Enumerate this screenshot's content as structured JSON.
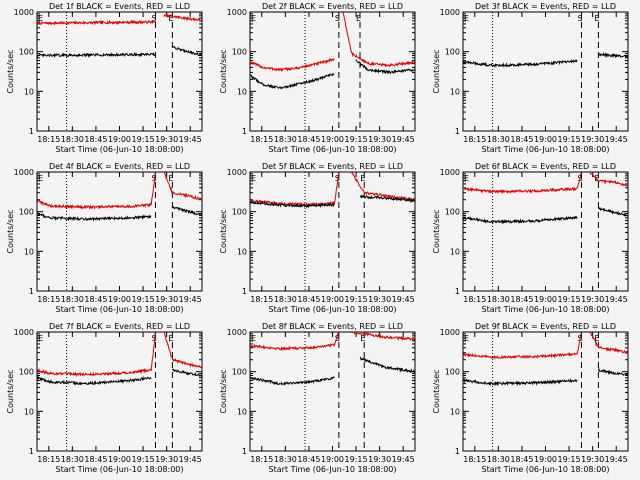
{
  "figure": {
    "background": "#f4f4f4",
    "event_color": "#000000",
    "lld_color": "#dd0000"
  },
  "chart_data": [
    {
      "type": "line",
      "title": "Det 1f BLACK = Events, RED = LLD",
      "xlabel": "Start Time (06-Jun-10 18:08:00)",
      "ylabel": "Counts/sec",
      "yscale": "log",
      "ylim": [
        1,
        1000
      ],
      "ytick_labels": [
        "1",
        "10",
        "100",
        "1000"
      ],
      "xlim": [
        "18:08",
        "18:47"
      ],
      "xtick_labels": [
        "18:15",
        "18:30",
        "18:45",
        "19:00",
        "19:15",
        "19:30",
        "19:45"
      ],
      "xtick_note": "tick labels as printed; the axis spans roughly 18:08-18:47",
      "dotted_vlines": [
        "18:15"
      ],
      "markers": [
        {
          "label": "S",
          "x": "18:36"
        },
        {
          "label": "E",
          "x": "18:40"
        }
      ],
      "corner_label": "E",
      "series": [
        {
          "name": "LLD",
          "segments": [
            {
              "x": [
                "18:08",
                "18:36"
              ],
              "y": [
                520,
                560
              ]
            },
            {
              "x": [
                "18:38",
                "18:47"
              ],
              "y": [
                820,
                620
              ]
            }
          ]
        },
        {
          "name": "Events",
          "segments": [
            {
              "x": [
                "18:08",
                "18:36"
              ],
              "y": [
                80,
                85
              ]
            },
            {
              "x": [
                "18:40",
                "18:47"
              ],
              "y": [
                130,
                80
              ]
            }
          ]
        }
      ]
    },
    {
      "type": "line",
      "title": "Det 2f BLACK = Events, RED = LLD",
      "xlabel": "Start Time (06-Jun-10 18:08:00)",
      "ylabel": "Counts/sec",
      "yscale": "log",
      "ylim": [
        1,
        1000
      ],
      "ytick_labels": [
        "1",
        "10",
        "100",
        "1000"
      ],
      "xlim": [
        "18:08",
        "18:47"
      ],
      "xtick_labels": [
        "18:15",
        "18:30",
        "18:45",
        "19:00",
        "19:15",
        "19:30",
        "19:45"
      ],
      "xtick_note": "tick labels as printed; the axis spans roughly 18:08-18:47",
      "dotted_vlines": [
        "18:21"
      ],
      "markers": [
        {
          "label": "S",
          "x": "18:29"
        },
        {
          "label": "E",
          "x": "18:34"
        }
      ],
      "corner_label": "E",
      "series": [
        {
          "name": "LLD",
          "segments": [
            {
              "x": [
                "18:08",
                "18:11",
                "18:15",
                "18:19",
                "18:24",
                "18:28"
              ],
              "y": [
                55,
                40,
                35,
                38,
                50,
                65
              ]
            },
            {
              "x": [
                "18:30",
                "18:32",
                "18:36",
                "18:41",
                "18:47"
              ],
              "y": [
                1000,
                90,
                50,
                45,
                55
              ]
            }
          ]
        },
        {
          "name": "Events",
          "segments": [
            {
              "x": [
                "18:08",
                "18:11",
                "18:15",
                "18:19",
                "18:24",
                "18:28"
              ],
              "y": [
                25,
                15,
                12,
                15,
                20,
                28
              ]
            },
            {
              "x": [
                "18:33",
                "18:36",
                "18:41",
                "18:47"
              ],
              "y": [
                60,
                35,
                30,
                35
              ]
            }
          ]
        }
      ]
    },
    {
      "type": "line",
      "title": "Det 3f BLACK = Events, RED = LLD",
      "xlabel": "Start Time (06-Jun-10 18:08:00)",
      "ylabel": "Counts/sec",
      "yscale": "log",
      "ylim": [
        1,
        1000
      ],
      "ytick_labels": [
        "1",
        "10",
        "100",
        "1000"
      ],
      "xlim": [
        "18:08",
        "18:47"
      ],
      "xtick_labels": [
        "18:15",
        "18:30",
        "18:45",
        "19:00",
        "19:15",
        "19:30",
        "19:45"
      ],
      "xtick_note": "tick labels as printed; the axis spans roughly 18:08-18:47",
      "dotted_vlines": [
        "18:15"
      ],
      "markers": [
        {
          "label": "S",
          "x": "18:36"
        },
        {
          "label": "E",
          "x": "18:40"
        }
      ],
      "corner_label": "E",
      "series": [
        {
          "name": "LLD",
          "segments": []
        },
        {
          "name": "Events",
          "segments": [
            {
              "x": [
                "18:08",
                "18:15",
                "18:25",
                "18:35"
              ],
              "y": [
                55,
                45,
                48,
                58
              ]
            },
            {
              "x": [
                "18:40",
                "18:47"
              ],
              "y": [
                85,
                75
              ]
            }
          ]
        }
      ]
    },
    {
      "type": "line",
      "title": "Det 4f BLACK = Events, RED = LLD",
      "xlabel": "Start Time (06-Jun-10 18:08:00)",
      "ylabel": "Counts/sec",
      "yscale": "log",
      "ylim": [
        1,
        1000
      ],
      "ytick_labels": [
        "1",
        "10",
        "100",
        "1000"
      ],
      "xlim": [
        "18:08",
        "18:47"
      ],
      "xtick_labels": [
        "18:15",
        "18:30",
        "18:45",
        "19:00",
        "19:15",
        "19:30",
        "19:45"
      ],
      "xtick_note": "tick labels as printed; the axis spans roughly 18:08-18:47",
      "dotted_vlines": [
        "18:15"
      ],
      "markers": [
        {
          "label": "S",
          "x": "18:36"
        },
        {
          "label": "E",
          "x": "18:40"
        }
      ],
      "corner_label": "E",
      "series": [
        {
          "name": "LLD",
          "segments": [
            {
              "x": [
                "18:08",
                "18:11",
                "18:20",
                "18:30",
                "18:35",
                "18:36"
              ],
              "y": [
                190,
                140,
                130,
                135,
                150,
                1000
              ]
            },
            {
              "x": [
                "18:38",
                "18:40",
                "18:44",
                "18:47"
              ],
              "y": [
                1000,
                300,
                250,
                200
              ]
            }
          ]
        },
        {
          "name": "Events",
          "segments": [
            {
              "x": [
                "18:08",
                "18:11",
                "18:20",
                "18:30",
                "18:35"
              ],
              "y": [
                90,
                70,
                65,
                70,
                75
              ]
            },
            {
              "x": [
                "18:40",
                "18:44",
                "18:47"
              ],
              "y": [
                130,
                100,
                80
              ]
            }
          ]
        }
      ]
    },
    {
      "type": "line",
      "title": "Det 5f BLACK = Events, RED = LLD",
      "xlabel": "Start Time (06-Jun-10 18:08:00)",
      "ylabel": "Counts/sec",
      "yscale": "log",
      "ylim": [
        1,
        1000
      ],
      "ytick_labels": [
        "1",
        "10",
        "100",
        "1000"
      ],
      "xlim": [
        "18:08",
        "18:47"
      ],
      "xtick_labels": [
        "18:15",
        "18:30",
        "18:45",
        "19:00",
        "19:15",
        "19:30",
        "19:45"
      ],
      "xtick_note": "tick labels as printed; the axis spans roughly 18:08-18:47",
      "dotted_vlines": [
        "18:21"
      ],
      "markers": [
        {
          "label": "S",
          "x": "18:29"
        },
        {
          "label": "E",
          "x": "18:35"
        }
      ],
      "corner_label": "E",
      "series": [
        {
          "name": "LLD",
          "segments": [
            {
              "x": [
                "18:08",
                "18:15",
                "18:22",
                "18:28",
                "18:29"
              ],
              "y": [
                190,
                160,
                150,
                165,
                1000
              ]
            },
            {
              "x": [
                "18:32",
                "18:35",
                "18:40",
                "18:47"
              ],
              "y": [
                1000,
                300,
                250,
                200
              ]
            }
          ]
        },
        {
          "name": "Events",
          "segments": [
            {
              "x": [
                "18:08",
                "18:15",
                "18:22",
                "18:28"
              ],
              "y": [
                175,
                145,
                140,
                150
              ]
            },
            {
              "x": [
                "18:34",
                "18:40",
                "18:47"
              ],
              "y": [
                240,
                220,
                190
              ]
            }
          ]
        }
      ]
    },
    {
      "type": "line",
      "title": "Det 6f BLACK = Events, RED = LLD",
      "xlabel": "Start Time (06-Jun-10 18:08:00)",
      "ylabel": "Counts/sec",
      "yscale": "log",
      "ylim": [
        1,
        1000
      ],
      "ytick_labels": [
        "1",
        "10",
        "100",
        "1000"
      ],
      "xlim": [
        "18:08",
        "18:47"
      ],
      "xtick_labels": [
        "18:15",
        "18:30",
        "18:45",
        "19:00",
        "19:15",
        "19:30",
        "19:45"
      ],
      "xtick_note": "tick labels as printed; the axis spans roughly 18:08-18:47",
      "dotted_vlines": [
        "18:15"
      ],
      "markers": [
        {
          "label": "S",
          "x": "18:36"
        },
        {
          "label": "E",
          "x": "18:40"
        }
      ],
      "corner_label": "E",
      "series": [
        {
          "name": "LLD",
          "segments": [
            {
              "x": [
                "18:08",
                "18:15",
                "18:25",
                "18:35",
                "18:36"
              ],
              "y": [
                380,
                320,
                330,
                380,
                1000
              ]
            },
            {
              "x": [
                "18:38",
                "18:40",
                "18:44",
                "18:47"
              ],
              "y": [
                1000,
                600,
                550,
                450
              ]
            }
          ]
        },
        {
          "name": "Events",
          "segments": [
            {
              "x": [
                "18:08",
                "18:15",
                "18:25",
                "18:35"
              ],
              "y": [
                70,
                55,
                58,
                72
              ]
            },
            {
              "x": [
                "18:40",
                "18:44",
                "18:47"
              ],
              "y": [
                120,
                95,
                80
              ]
            }
          ]
        }
      ]
    },
    {
      "type": "line",
      "title": "Det 7f BLACK = Events, RED = LLD",
      "xlabel": "Start Time (06-Jun-10 18:08:00)",
      "ylabel": "Counts/sec",
      "yscale": "log",
      "ylim": [
        1,
        1000
      ],
      "ytick_labels": [
        "1",
        "10",
        "100",
        "1000"
      ],
      "xlim": [
        "18:08",
        "18:47"
      ],
      "xtick_labels": [
        "18:15",
        "18:30",
        "18:45",
        "19:00",
        "19:15",
        "19:30",
        "19:45"
      ],
      "xtick_note": "tick labels as printed; the axis spans roughly 18:08-18:47",
      "dotted_vlines": [
        "18:15"
      ],
      "markers": [
        {
          "label": "S",
          "x": "18:36"
        },
        {
          "label": "E",
          "x": "18:40"
        }
      ],
      "corner_label": "E",
      "series": [
        {
          "name": "LLD",
          "segments": [
            {
              "x": [
                "18:08",
                "18:11",
                "18:20",
                "18:30",
                "18:35",
                "18:36"
              ],
              "y": [
                110,
                90,
                85,
                95,
                110,
                1000
              ]
            },
            {
              "x": [
                "18:38",
                "18:40",
                "18:44",
                "18:47"
              ],
              "y": [
                1000,
                200,
                150,
                130
              ]
            }
          ]
        },
        {
          "name": "Events",
          "segments": [
            {
              "x": [
                "18:08",
                "18:11",
                "18:20",
                "18:30",
                "18:35"
              ],
              "y": [
                70,
                55,
                50,
                60,
                70
              ]
            },
            {
              "x": [
                "18:40",
                "18:44",
                "18:47"
              ],
              "y": [
                110,
                90,
                80
              ]
            }
          ]
        }
      ]
    },
    {
      "type": "line",
      "title": "Det 8f BLACK = Events, RED = LLD",
      "xlabel": "Start Time (06-Jun-10 18:08:00)",
      "ylabel": "Counts/sec",
      "yscale": "log",
      "ylim": [
        1,
        1000
      ],
      "ytick_labels": [
        "1",
        "10",
        "100",
        "1000"
      ],
      "xlim": [
        "18:08",
        "18:47"
      ],
      "xtick_labels": [
        "18:15",
        "18:30",
        "18:45",
        "19:00",
        "19:15",
        "19:30",
        "19:45"
      ],
      "xtick_note": "tick labels as printed; the axis spans roughly 18:08-18:47",
      "dotted_vlines": [
        "18:21"
      ],
      "markers": [
        {
          "label": "S",
          "x": "18:29"
        },
        {
          "label": "E",
          "x": "18:35"
        }
      ],
      "corner_label": "E",
      "series": [
        {
          "name": "LLD",
          "segments": [
            {
              "x": [
                "18:08",
                "18:15",
                "18:22",
                "18:28",
                "18:29"
              ],
              "y": [
                450,
                380,
                400,
                480,
                1000
              ]
            },
            {
              "x": [
                "18:32",
                "18:35",
                "18:40",
                "18:47"
              ],
              "y": [
                1000,
                900,
                750,
                650
              ]
            }
          ]
        },
        {
          "name": "Events",
          "segments": [
            {
              "x": [
                "18:08",
                "18:15",
                "18:22",
                "18:28"
              ],
              "y": [
                70,
                50,
                55,
                70
              ]
            },
            {
              "x": [
                "18:34",
                "18:40",
                "18:47"
              ],
              "y": [
                220,
                130,
                100
              ]
            }
          ]
        }
      ]
    },
    {
      "type": "line",
      "title": "Det 9f BLACK = Events, RED = LLD",
      "xlabel": "Start Time (06-Jun-10 18:08:00)",
      "ylabel": "Counts/sec",
      "yscale": "log",
      "ylim": [
        1,
        1000
      ],
      "ytick_labels": [
        "1",
        "10",
        "100",
        "1000"
      ],
      "xlim": [
        "18:08",
        "18:47"
      ],
      "xtick_labels": [
        "18:15",
        "18:30",
        "18:45",
        "19:00",
        "19:15",
        "19:30",
        "19:45"
      ],
      "xtick_note": "tick labels as printed; the axis spans roughly 18:08-18:47",
      "dotted_vlines": [
        "18:15"
      ],
      "markers": [
        {
          "label": "S",
          "x": "18:36"
        },
        {
          "label": "E",
          "x": "18:40"
        }
      ],
      "corner_label": "E",
      "series": [
        {
          "name": "LLD",
          "segments": [
            {
              "x": [
                "18:08",
                "18:15",
                "18:25",
                "18:35",
                "18:36"
              ],
              "y": [
                270,
                230,
                240,
                280,
                1000
              ]
            },
            {
              "x": [
                "18:38",
                "18:40",
                "18:44",
                "18:47"
              ],
              "y": [
                1000,
                400,
                350,
                300
              ]
            }
          ]
        },
        {
          "name": "Events",
          "segments": [
            {
              "x": [
                "18:08",
                "18:15",
                "18:25",
                "18:35"
              ],
              "y": [
                60,
                50,
                52,
                60
              ]
            },
            {
              "x": [
                "18:40",
                "18:44",
                "18:47"
              ],
              "y": [
                110,
                90,
                85
              ]
            }
          ]
        }
      ]
    }
  ]
}
